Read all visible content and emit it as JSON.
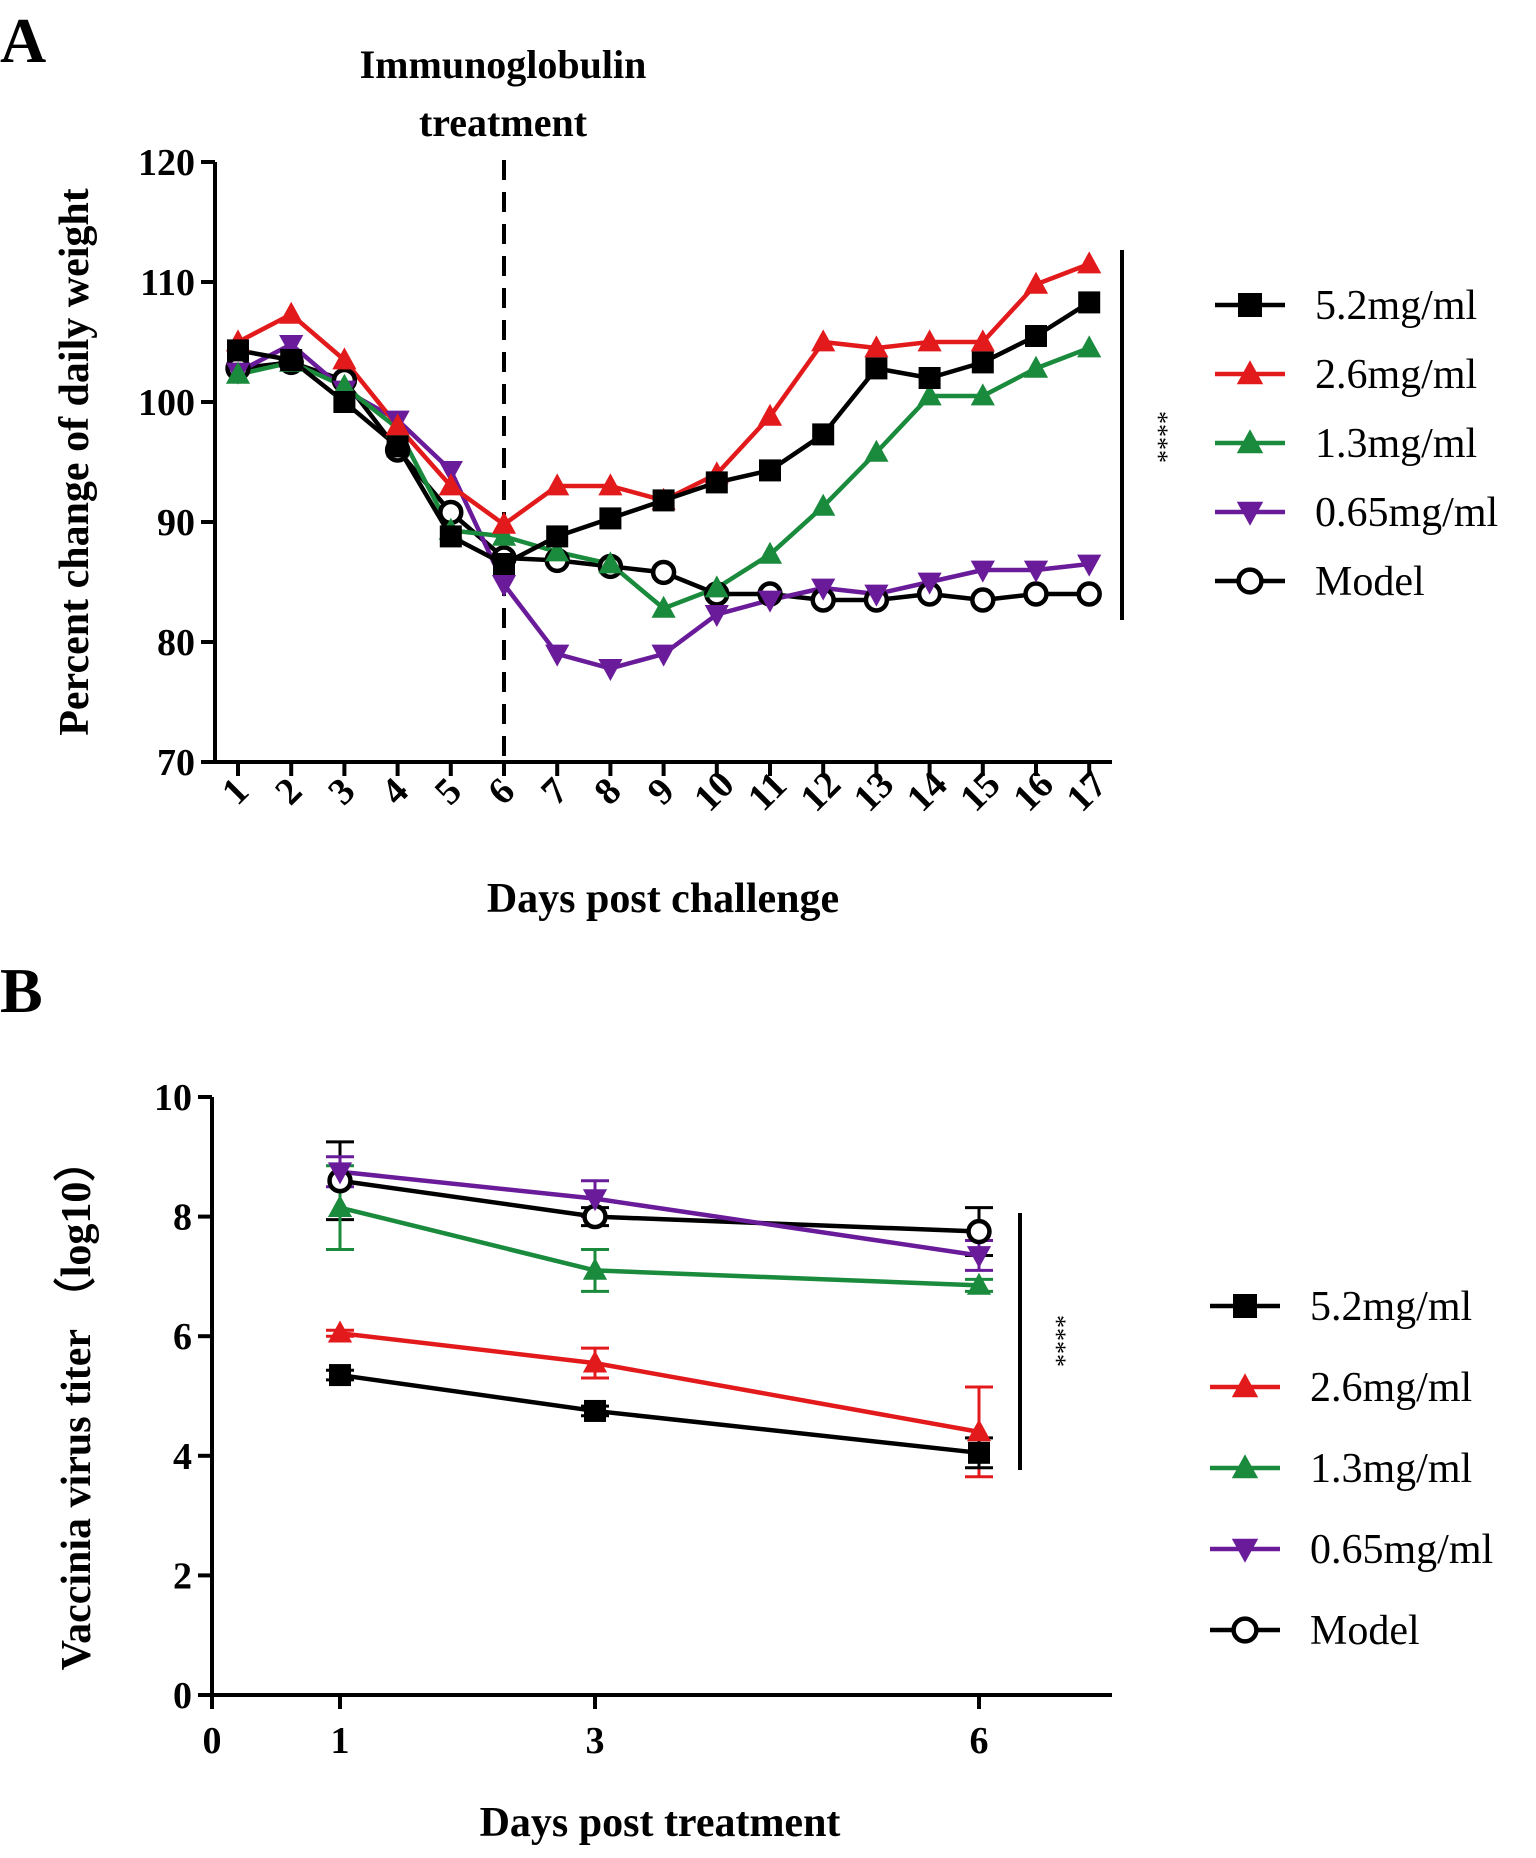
{
  "panel_a_label": "A",
  "panel_b_label": "B",
  "colors": {
    "5.2mg/ml": "#000000",
    "2.6mg/ml": "#e31a1c",
    "1.3mg/ml": "#1a8a3c",
    "0.65mg/ml": "#6a1b9a",
    "Model": "#000000"
  },
  "chart_data": [
    {
      "type": "line",
      "xlabel": "Days post challenge",
      "ylabel": "Percent change of daily weight",
      "ylim": [
        70,
        120
      ],
      "yticks": [
        70,
        80,
        90,
        100,
        110,
        120
      ],
      "x": [
        1,
        2,
        3,
        4,
        5,
        6,
        7,
        8,
        9,
        10,
        11,
        12,
        13,
        14,
        15,
        16,
        17
      ],
      "xtick_labels": [
        "1",
        "2",
        "3",
        "4",
        "5",
        "6",
        "7",
        "8",
        "9",
        "10",
        "11",
        "12",
        "13",
        "14",
        "15",
        "16",
        "17"
      ],
      "annotation": {
        "text_line1": "Immunoglobulin",
        "text_line2": "treatment",
        "x": 6
      },
      "significance": "****",
      "series": [
        {
          "name": "5.2mg/ml",
          "marker": "square",
          "values": [
            104.3,
            103.5,
            100.0,
            96.3,
            88.8,
            86.5,
            88.8,
            90.3,
            91.8,
            93.3,
            94.3,
            97.3,
            102.8,
            102.0,
            103.3,
            105.5,
            108.3
          ]
        },
        {
          "name": "2.6mg/ml",
          "marker": "triangle-up",
          "values": [
            105.0,
            107.3,
            103.5,
            98.0,
            93.0,
            89.8,
            93.0,
            93.0,
            91.8,
            94.0,
            98.8,
            105.0,
            104.5,
            105.0,
            105.0,
            109.8,
            111.5
          ]
        },
        {
          "name": "1.3mg/ml",
          "marker": "triangle-up",
          "values": [
            102.3,
            103.3,
            101.3,
            97.8,
            89.3,
            88.8,
            87.5,
            86.5,
            82.8,
            84.5,
            87.3,
            91.3,
            95.8,
            100.5,
            100.5,
            102.8,
            104.5
          ]
        },
        {
          "name": "0.65mg/ml",
          "marker": "triangle-down",
          "values": [
            102.5,
            104.8,
            101.0,
            98.5,
            94.3,
            84.8,
            79.0,
            77.8,
            79.0,
            82.3,
            83.5,
            84.5,
            84.0,
            85.0,
            86.0,
            86.0,
            86.5
          ]
        },
        {
          "name": "Model",
          "marker": "circle-open",
          "values": [
            102.8,
            103.3,
            101.8,
            96.0,
            90.8,
            87.0,
            86.8,
            86.3,
            85.8,
            84.0,
            84.0,
            83.5,
            83.5,
            84.0,
            83.5,
            84.0,
            84.0
          ]
        }
      ]
    },
    {
      "type": "line",
      "xlabel": "Days post treatment",
      "ylabel": "Vaccinia virus titer （log10）",
      "ylim": [
        0,
        10
      ],
      "xlim": [
        0,
        7
      ],
      "yticks": [
        0,
        2,
        4,
        6,
        8,
        10
      ],
      "xticks": [
        0,
        1,
        3,
        6
      ],
      "xtick_labels": [
        "0",
        "1",
        "3",
        "6"
      ],
      "x": [
        1,
        3,
        6
      ],
      "significance": "****",
      "series": [
        {
          "name": "5.2mg/ml",
          "marker": "square",
          "values": [
            5.35,
            4.75,
            4.05
          ],
          "errors": [
            0.08,
            0.08,
            0.25
          ]
        },
        {
          "name": "2.6mg/ml",
          "marker": "triangle-up",
          "values": [
            6.05,
            5.55,
            4.4
          ],
          "errors": [
            0.05,
            0.25,
            0.75
          ]
        },
        {
          "name": "1.3mg/ml",
          "marker": "triangle-up",
          "values": [
            8.15,
            7.1,
            6.85
          ],
          "errors": [
            0.7,
            0.35,
            0.1
          ]
        },
        {
          "name": "0.65mg/ml",
          "marker": "triangle-down",
          "values": [
            8.75,
            8.3,
            7.35
          ],
          "errors": [
            0.25,
            0.3,
            0.25
          ]
        },
        {
          "name": "Model",
          "marker": "circle-open",
          "values": [
            8.6,
            8.0,
            7.75
          ],
          "errors": [
            0.65,
            0.15,
            0.4
          ]
        }
      ]
    }
  ]
}
